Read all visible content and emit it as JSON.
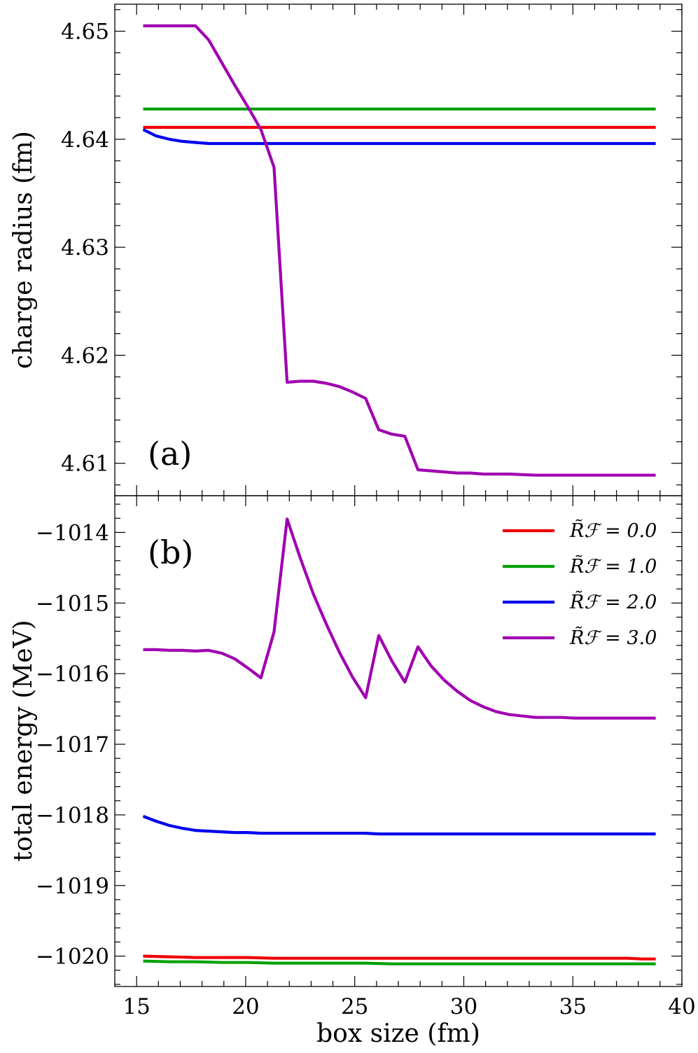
{
  "chart_data": [
    {
      "type": "line",
      "panel": "(a)",
      "xlabel": "box size (fm)",
      "ylabel": "charge radius (fm)",
      "xlim": [
        14,
        40
      ],
      "ylim": [
        4.607,
        4.6525
      ],
      "yticks": [
        4.61,
        4.62,
        4.63,
        4.64,
        4.65
      ],
      "ytick_labels": [
        "4.61",
        "4.62",
        "4.63",
        "4.64",
        "4.65"
      ],
      "series": [
        {
          "name": "R_F = 0.0",
          "color": "#ee0000",
          "x": [
            15.3,
            38.8
          ],
          "y": [
            4.6411,
            4.6411
          ]
        },
        {
          "name": "R_F = 1.0",
          "color": "#00a000",
          "x": [
            15.3,
            38.8
          ],
          "y": [
            4.6428,
            4.6428
          ]
        },
        {
          "name": "R_F = 2.0",
          "color": "#0000ee",
          "x": [
            15.3,
            15.9,
            16.5,
            17.1,
            17.7,
            18.3,
            18.9,
            19.5,
            20.1,
            20.7,
            21.3,
            22.0,
            23.0,
            25.0,
            30.0,
            35.0,
            38.8
          ],
          "y": [
            4.6409,
            4.6403,
            4.64,
            4.6398,
            4.6397,
            4.6396,
            4.6396,
            4.6396,
            4.6396,
            4.6396,
            4.6396,
            4.6396,
            4.6396,
            4.6396,
            4.6396,
            4.6396,
            4.6396
          ]
        },
        {
          "name": "R_F = 3.0",
          "color": "#a000b0",
          "x": [
            15.3,
            15.9,
            16.5,
            17.1,
            17.7,
            18.3,
            18.9,
            19.5,
            20.1,
            20.7,
            21.3,
            21.9,
            22.5,
            23.1,
            23.7,
            24.3,
            24.9,
            25.5,
            26.1,
            26.7,
            27.3,
            27.9,
            28.5,
            29.1,
            29.7,
            30.3,
            30.9,
            31.5,
            32.1,
            33.3,
            35.1,
            36.9,
            38.8
          ],
          "y": [
            4.6505,
            4.6505,
            4.6505,
            4.6505,
            4.6505,
            4.6492,
            4.6471,
            4.645,
            4.643,
            4.6409,
            4.6374,
            4.6175,
            4.6176,
            4.6176,
            4.6174,
            4.6171,
            4.6166,
            4.616,
            4.6131,
            4.6127,
            4.6125,
            4.6094,
            4.6093,
            4.6092,
            4.6091,
            4.6091,
            4.609,
            4.609,
            4.609,
            4.6089,
            4.6089,
            4.6089,
            4.6089
          ]
        }
      ]
    },
    {
      "type": "line",
      "panel": "(b)",
      "xlabel": "box size (fm)",
      "ylabel": "total energy (MeV)",
      "xlim": [
        14,
        40
      ],
      "ylim": [
        -1020.43,
        -1013.48
      ],
      "yticks": [
        -1020,
        -1019,
        -1018,
        -1017,
        -1016,
        -1015,
        -1014
      ],
      "ytick_labels": [
        "−1020",
        "−1019",
        "−1018",
        "−1017",
        "−1016",
        "−1015",
        "−1014"
      ],
      "xticks": [
        15,
        20,
        25,
        30,
        35,
        40
      ],
      "xtick_labels": [
        "15",
        "20",
        "25",
        "30",
        "35",
        "40"
      ],
      "legend": {
        "location": "top-right",
        "entries": [
          "R̃ℱ = 0.0",
          "R̃ℱ = 1.0",
          "R̃ℱ = 2.0",
          "R̃ℱ = 3.0"
        ]
      },
      "series": [
        {
          "name": "R_F = 0.0",
          "color": "#ee0000",
          "x": [
            15.3,
            16.5,
            17.7,
            18.9,
            20.1,
            21.3,
            22.5,
            23.7,
            25.5,
            30.0,
            35.0,
            37.5,
            38.2,
            38.8
          ],
          "y": [
            -1020.0,
            -1020.01,
            -1020.02,
            -1020.02,
            -1020.02,
            -1020.03,
            -1020.03,
            -1020.03,
            -1020.03,
            -1020.03,
            -1020.03,
            -1020.03,
            -1020.04,
            -1020.04
          ]
        },
        {
          "name": "R_F = 1.0",
          "color": "#00a000",
          "x": [
            15.3,
            16.5,
            17.7,
            18.9,
            20.1,
            21.3,
            22.5,
            23.7,
            25.5,
            26.7,
            30.0,
            35.0,
            38.8
          ],
          "y": [
            -1020.07,
            -1020.08,
            -1020.08,
            -1020.09,
            -1020.09,
            -1020.1,
            -1020.1,
            -1020.1,
            -1020.1,
            -1020.11,
            -1020.11,
            -1020.11,
            -1020.11
          ]
        },
        {
          "name": "R_F = 2.0",
          "color": "#0000ee",
          "x": [
            15.3,
            15.9,
            16.5,
            17.1,
            17.7,
            18.3,
            18.9,
            19.5,
            20.1,
            20.7,
            22.5,
            25.5,
            26.1,
            30.0,
            35.0,
            38.8
          ],
          "y": [
            -1018.02,
            -1018.09,
            -1018.15,
            -1018.19,
            -1018.22,
            -1018.23,
            -1018.24,
            -1018.25,
            -1018.25,
            -1018.26,
            -1018.26,
            -1018.26,
            -1018.27,
            -1018.27,
            -1018.27,
            -1018.27
          ]
        },
        {
          "name": "R_F = 3.0",
          "color": "#a000b0",
          "x": [
            15.3,
            15.9,
            16.5,
            17.1,
            17.7,
            18.3,
            18.9,
            19.5,
            20.1,
            20.7,
            21.3,
            21.9,
            22.5,
            23.1,
            23.7,
            24.3,
            24.9,
            25.5,
            26.1,
            26.7,
            27.3,
            27.9,
            28.5,
            29.1,
            29.7,
            30.3,
            30.9,
            31.5,
            32.1,
            32.7,
            33.3,
            34.5,
            35.1,
            36.9,
            38.8
          ],
          "y": [
            -1015.66,
            -1015.66,
            -1015.67,
            -1015.67,
            -1015.68,
            -1015.67,
            -1015.71,
            -1015.79,
            -1015.92,
            -1016.06,
            -1015.41,
            -1013.81,
            -1014.36,
            -1014.87,
            -1015.3,
            -1015.7,
            -1016.05,
            -1016.34,
            -1015.46,
            -1015.82,
            -1016.12,
            -1015.62,
            -1015.89,
            -1016.09,
            -1016.25,
            -1016.38,
            -1016.47,
            -1016.54,
            -1016.58,
            -1016.6,
            -1016.62,
            -1016.62,
            -1016.63,
            -1016.63,
            -1016.63
          ]
        }
      ]
    }
  ]
}
